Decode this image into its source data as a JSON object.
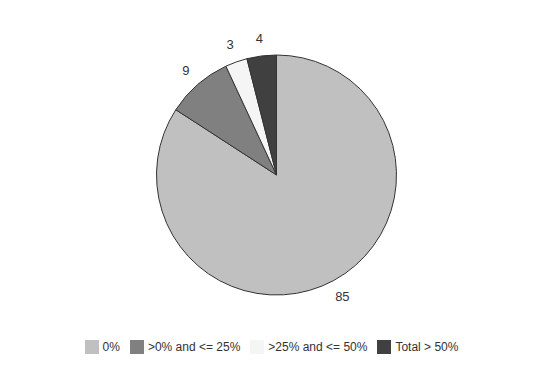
{
  "chart_data": {
    "type": "pie",
    "categories": [
      "0%",
      ">0% and <= 25%",
      ">25% and <= 50%",
      "Total > 50%"
    ],
    "values": [
      85,
      9,
      3,
      4
    ],
    "colors": [
      "#c0c0c0",
      "#808080",
      "#f5f5f5",
      "#404040"
    ],
    "data_labels": true,
    "legend": "bottom"
  }
}
